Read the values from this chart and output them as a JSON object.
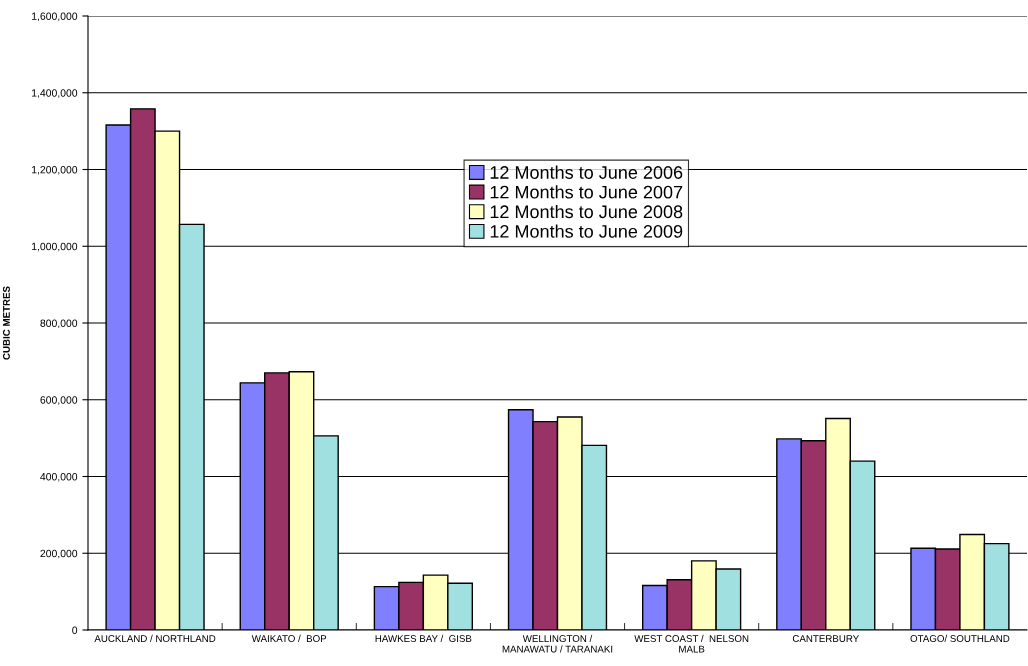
{
  "chart_data": {
    "type": "bar",
    "ylabel": "CUBIC METRES",
    "categories": [
      "AUCKLAND / NORTHLAND",
      "WAIKATO /  BOP",
      "HAWKES BAY /  GISB",
      "WELLINGTON /\nMANAWATU / TARANAKI",
      "WEST COAST /  NELSON\nMALB",
      "CANTERBURY",
      "OTAGO/ SOUTHLAND"
    ],
    "series": [
      {
        "name": "12 Months to June 2006",
        "color": "#8080ff",
        "values": [
          1316000,
          644000,
          113000,
          574000,
          116000,
          498000,
          213000
        ]
      },
      {
        "name": "12 Months to June 2007",
        "color": "#993366",
        "values": [
          1358000,
          670000,
          124000,
          543000,
          131000,
          493000,
          211000
        ]
      },
      {
        "name": "12 Months to June 2008",
        "color": "#ffffc0",
        "values": [
          1300000,
          673000,
          143000,
          555000,
          180000,
          551000,
          249000
        ]
      },
      {
        "name": "12 Months to June 2009",
        "color": "#a0e0e0",
        "values": [
          1057000,
          506000,
          122000,
          481000,
          159000,
          440000,
          225000
        ]
      }
    ],
    "ylim": [
      0,
      1600000
    ],
    "yticks": [
      {
        "value": 0,
        "label": "0"
      },
      {
        "value": 200000,
        "label": "200,000"
      },
      {
        "value": 400000,
        "label": "400,000"
      },
      {
        "value": 600000,
        "label": "600,000"
      },
      {
        "value": 800000,
        "label": "800,000"
      },
      {
        "value": 1000000,
        "label": "1,000,000"
      },
      {
        "value": 1200000,
        "label": "1,200,000"
      },
      {
        "value": 1400000,
        "label": "1,400,000"
      },
      {
        "value": 1600000,
        "label": "1,600,000"
      }
    ],
    "grid": "y",
    "legend": "top center"
  }
}
